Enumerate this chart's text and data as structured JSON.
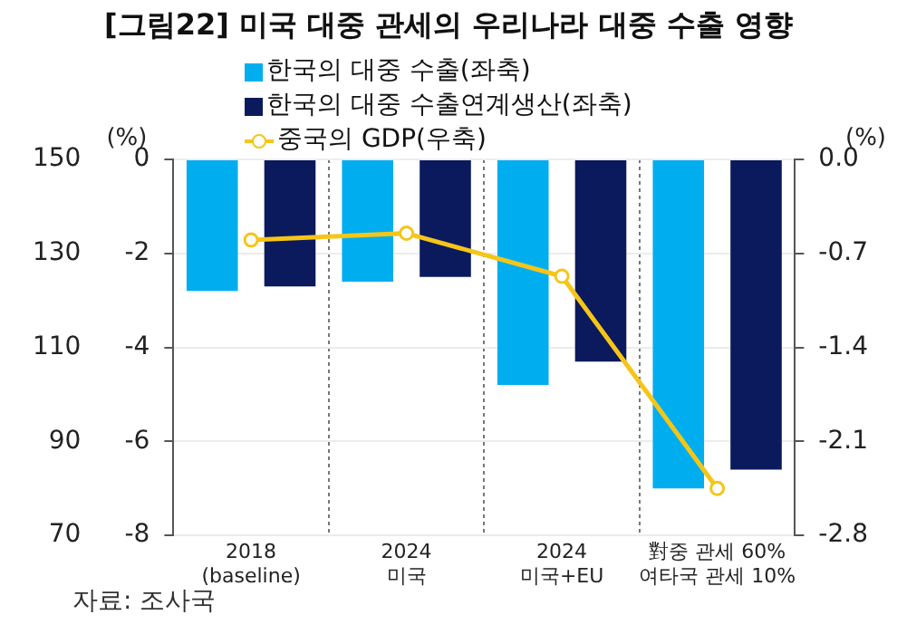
{
  "chart_data": {
    "type": "bar",
    "title": "[그림22] 미국 대중 관세의 우리나라 대중 수출 영향",
    "categories": [
      "2018\n(baseline)",
      "2024\n미국",
      "2024\n미국+EU",
      "對중 관세 60%\n여타국 관세 10%"
    ],
    "series": [
      {
        "name": "한국의 대중 수출(좌축)",
        "color": "#00aeef",
        "values": [
          -2.8,
          -2.6,
          -4.8,
          -7.0
        ]
      },
      {
        "name": "한국의 대중 수출연계생산(좌축)",
        "color": "#0a1a5c",
        "values": [
          -2.7,
          -2.5,
          -4.3,
          -6.6
        ]
      },
      {
        "name": "중국의 GDP(우축)",
        "type": "line",
        "axis": "y2",
        "color": "#f5c518",
        "values": [
          -0.6,
          -0.55,
          -0.87,
          -2.45
        ]
      }
    ],
    "ylabel": "(%)",
    "y2label": "(%)",
    "ylim": [
      -8,
      0
    ],
    "yticks": [
      0,
      -2,
      -4,
      -6,
      -8
    ],
    "y2lim": [
      -2.8,
      0
    ],
    "y2ticks": [
      {
        "value": 0,
        "label": "0.0"
      },
      -0.7,
      -1.4,
      -2.1,
      -2.8
    ],
    "y3lim": [
      70,
      150
    ],
    "y3ticks": [
      150,
      130,
      110,
      90,
      70
    ],
    "grid": true,
    "legend": "top",
    "marker": "circle",
    "line_style": "solid",
    "annotations": [
      "자료: 조사국"
    ]
  }
}
